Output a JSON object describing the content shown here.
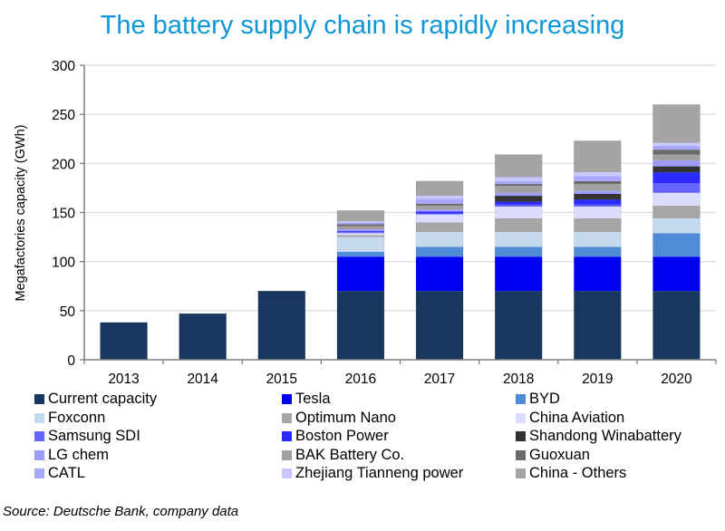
{
  "chart_data": {
    "type": "bar",
    "stacked": true,
    "title": "The battery supply chain is rapidly increasing",
    "xlabel": "",
    "ylabel": "Megafactories capacity (GWh)",
    "ylim": [
      0,
      300
    ],
    "yticks": [
      0,
      50,
      100,
      150,
      200,
      250,
      300
    ],
    "grid": true,
    "legend_position": "bottom",
    "categories": [
      "2013",
      "2014",
      "2015",
      "2016",
      "2017",
      "2018",
      "2019",
      "2020"
    ],
    "series": [
      {
        "name": "Current capacity",
        "color": "#17375e",
        "values": [
          38,
          47,
          70,
          70,
          70,
          70,
          70,
          70
        ]
      },
      {
        "name": "Tesla",
        "color": "#0000f0",
        "values": [
          0,
          0,
          0,
          35,
          35,
          35,
          35,
          35
        ]
      },
      {
        "name": "BYD",
        "color": "#4f8bd6",
        "values": [
          0,
          0,
          0,
          5,
          10,
          10,
          10,
          24
        ]
      },
      {
        "name": "Foxconn",
        "color": "#c5d9ef",
        "values": [
          0,
          0,
          0,
          15,
          15,
          15,
          15,
          15
        ]
      },
      {
        "name": "Optimum Nano",
        "color": "#a6a6a6",
        "values": [
          0,
          0,
          0,
          2,
          10,
          14,
          14,
          13
        ]
      },
      {
        "name": "China Aviation",
        "color": "#dcdcff",
        "values": [
          0,
          0,
          0,
          2,
          8,
          12,
          12,
          13
        ]
      },
      {
        "name": "Samsung SDI",
        "color": "#6464ff",
        "values": [
          0,
          0,
          0,
          1,
          1,
          2,
          2,
          10
        ]
      },
      {
        "name": "Boston Power",
        "color": "#2a2aff",
        "values": [
          0,
          0,
          0,
          1,
          2,
          3,
          5,
          11
        ]
      },
      {
        "name": "Shandong Winabattery",
        "color": "#333333",
        "values": [
          0,
          0,
          0,
          0,
          0,
          6,
          6,
          6
        ]
      },
      {
        "name": "LG chem",
        "color": "#9c9cff",
        "values": [
          0,
          0,
          0,
          2,
          2,
          3,
          3,
          6
        ]
      },
      {
        "name": "BAK Battery Co.",
        "color": "#a0a0a0",
        "values": [
          0,
          0,
          0,
          3,
          4,
          7,
          7,
          6
        ]
      },
      {
        "name": "Guoxuan",
        "color": "#6b6b6b",
        "values": [
          0,
          0,
          0,
          2,
          2,
          2,
          3,
          5
        ]
      },
      {
        "name": "CATL",
        "color": "#a8a8ff",
        "values": [
          0,
          0,
          0,
          2,
          5,
          3,
          5,
          4
        ]
      },
      {
        "name": "Zhejiang Tianneng power",
        "color": "#c8c8ff",
        "values": [
          0,
          0,
          0,
          1,
          3,
          4,
          4,
          3
        ]
      },
      {
        "name": "China - Others",
        "color": "#a4a4a4",
        "values": [
          0,
          0,
          0,
          11,
          15,
          23,
          32,
          39
        ]
      }
    ]
  },
  "legend_order": [
    "Current capacity",
    "Tesla",
    "BYD",
    "Foxconn",
    "Optimum Nano",
    "China Aviation",
    "Samsung SDI",
    "Boston Power",
    "Shandong Winabattery",
    "LG chem",
    "BAK Battery Co.",
    "Guoxuan",
    "CATL",
    "Zhejiang Tianneng power",
    "China - Others"
  ],
  "source": "Source: Deutsche Bank, company data"
}
